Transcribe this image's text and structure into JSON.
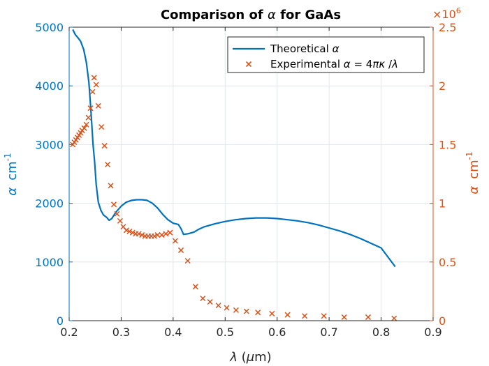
{
  "chart_data": {
    "type": "line",
    "title": {
      "prefix": "Comparison of ",
      "symbol": "α",
      "suffix": " for GaAs"
    },
    "xlabel": {
      "symbol": "λ",
      "prefix": " (",
      "unit_symbol": "μ",
      "unit": "m)"
    },
    "ylabel_left": {
      "symbol": "α",
      "unit": "cm",
      "exp": "-1"
    },
    "ylabel_right": {
      "symbol": "α",
      "unit": "cm",
      "exp": "-1"
    },
    "right_multiplier": {
      "times": "×10",
      "exp": "6"
    },
    "xlim": [
      0.2,
      0.9
    ],
    "ylim_left": [
      0,
      5000
    ],
    "ylim_right": [
      0,
      2.5
    ],
    "grid": true,
    "legend_placement": "top-right",
    "x_ticks": [
      "0.2",
      "0.3",
      "0.4",
      "0.5",
      "0.6",
      "0.7",
      "0.8",
      "0.9"
    ],
    "y_ticks_left": [
      "0",
      "1000",
      "2000",
      "3000",
      "4000",
      "5000"
    ],
    "y_ticks_right": [
      "0",
      "0.5",
      "1",
      "1.5",
      "2",
      "2.5"
    ],
    "series": [
      {
        "name": "Theoretical α",
        "legend_text": "Theoretical ",
        "legend_symbol": "α",
        "axis": "left",
        "style": "line",
        "color": "#0072BD",
        "x": [
          0.207,
          0.212,
          0.216,
          0.222,
          0.228,
          0.233,
          0.238,
          0.242,
          0.246,
          0.249,
          0.252,
          0.256,
          0.261,
          0.266,
          0.272,
          0.277,
          0.282,
          0.29,
          0.3,
          0.31,
          0.32,
          0.33,
          0.34,
          0.35,
          0.36,
          0.37,
          0.38,
          0.39,
          0.4,
          0.41,
          0.415,
          0.42,
          0.428,
          0.44,
          0.45,
          0.46,
          0.48,
          0.5,
          0.52,
          0.54,
          0.56,
          0.58,
          0.6,
          0.62,
          0.64,
          0.66,
          0.68,
          0.7,
          0.72,
          0.74,
          0.76,
          0.78,
          0.8,
          0.827
        ],
        "y": [
          4960,
          4870,
          4830,
          4760,
          4620,
          4400,
          4050,
          3550,
          3000,
          2700,
          2320,
          2020,
          1880,
          1800,
          1760,
          1710,
          1740,
          1850,
          1950,
          2020,
          2050,
          2060,
          2060,
          2050,
          2000,
          1920,
          1810,
          1720,
          1660,
          1640,
          1570,
          1470,
          1480,
          1510,
          1560,
          1600,
          1650,
          1690,
          1720,
          1740,
          1750,
          1750,
          1740,
          1720,
          1700,
          1670,
          1630,
          1580,
          1530,
          1470,
          1400,
          1320,
          1240,
          920
        ]
      },
      {
        "name": "Experimental α = 4πκ/λ",
        "legend_text": "Experimental ",
        "legend_symbol": "α",
        "legend_eq": " = 4",
        "legend_pi": "π",
        "legend_kappa": "κ",
        "legend_slash": " /",
        "legend_lambda": "λ",
        "axis": "right",
        "style": "markers",
        "marker": "x",
        "color": "#D95319",
        "x": [
          0.207,
          0.21,
          0.213,
          0.216,
          0.219,
          0.222,
          0.225,
          0.229,
          0.233,
          0.237,
          0.241,
          0.245,
          0.248,
          0.252,
          0.256,
          0.262,
          0.268,
          0.274,
          0.28,
          0.286,
          0.292,
          0.298,
          0.304,
          0.31,
          0.316,
          0.322,
          0.328,
          0.334,
          0.34,
          0.346,
          0.352,
          0.358,
          0.364,
          0.37,
          0.378,
          0.386,
          0.394,
          0.404,
          0.415,
          0.428,
          0.443,
          0.457,
          0.471,
          0.487,
          0.503,
          0.521,
          0.541,
          0.563,
          0.59,
          0.62,
          0.653,
          0.69,
          0.729,
          0.775,
          0.825
        ],
        "y": [
          1.5,
          1.52,
          1.54,
          1.56,
          1.58,
          1.6,
          1.62,
          1.64,
          1.67,
          1.73,
          1.81,
          1.95,
          2.07,
          2.01,
          1.83,
          1.65,
          1.49,
          1.33,
          1.15,
          0.99,
          0.91,
          0.85,
          0.8,
          0.77,
          0.76,
          0.75,
          0.74,
          0.74,
          0.73,
          0.72,
          0.72,
          0.72,
          0.72,
          0.73,
          0.73,
          0.74,
          0.75,
          0.68,
          0.6,
          0.51,
          0.29,
          0.19,
          0.16,
          0.13,
          0.11,
          0.09,
          0.08,
          0.07,
          0.06,
          0.05,
          0.04,
          0.04,
          0.03,
          0.03,
          0.02
        ]
      }
    ]
  }
}
